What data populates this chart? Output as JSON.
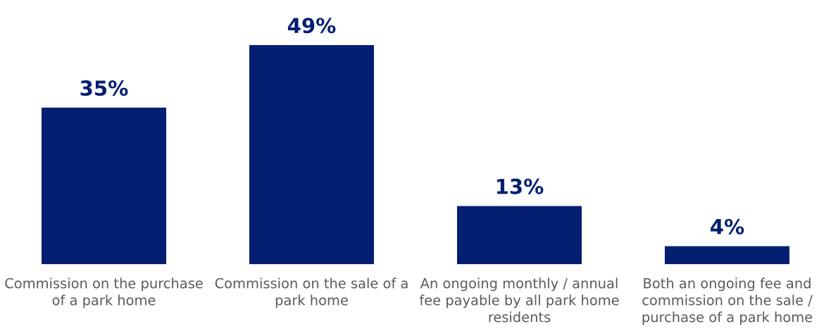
{
  "chart_data": {
    "type": "bar",
    "categories": [
      "Commission on the purchase of a park home",
      "Commission on the sale of a park home",
      "An ongoing monthly / annual fee payable by all park home residents",
      "Both an ongoing fee and commission on the sale / purchase of a park home"
    ],
    "values": [
      35,
      49,
      13,
      4
    ],
    "color": "#041f71",
    "value_labels": [
      "35%",
      "49%",
      "13%",
      "4%"
    ],
    "grid": false,
    "legend": false
  }
}
